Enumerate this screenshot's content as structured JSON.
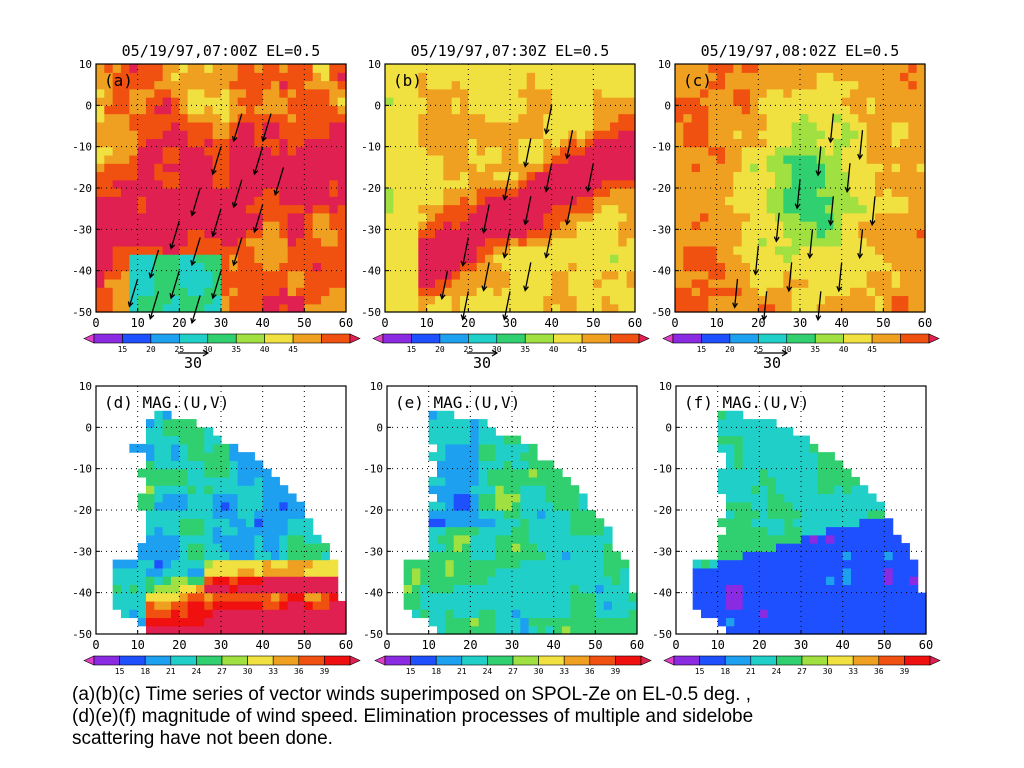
{
  "colors": {
    "ze_scale": [
      "#e040c8",
      "#8a2be2",
      "#1e50ff",
      "#1ea0f0",
      "#20d0c8",
      "#30d070",
      "#a0e040",
      "#f0e040",
      "#f0a020",
      "#f05010",
      "#e02050"
    ],
    "mag_scale": [
      "#e040c8",
      "#8a2be2",
      "#1e50ff",
      "#1ea0f0",
      "#20d0c8",
      "#30d070",
      "#a0e040",
      "#f0e040",
      "#f0a020",
      "#f05010",
      "#f01010",
      "#e02050"
    ],
    "arrow": "#000000",
    "axis": "#000000"
  },
  "chart_data": [
    {
      "id": "a",
      "type": "heatmap",
      "title": "05/19/97,07:00Z EL=0.5",
      "panel_label": "(a)",
      "field": "Ze",
      "overlay": "wind vectors",
      "xlim": [
        0,
        60
      ],
      "ylim": [
        -50,
        10
      ],
      "x_ticks": [
        "0",
        "10",
        "20",
        "30",
        "40",
        "50",
        "60"
      ],
      "y_ticks": [
        "10",
        "0",
        "-10",
        "-20",
        "-30",
        "-40",
        "-50"
      ],
      "grid": true,
      "colorbar_ticks": [
        "15",
        "20",
        "25",
        "30",
        "35",
        "40",
        "45"
      ],
      "vector_scale_label": "30",
      "dominant_value_range": [
        25,
        50
      ],
      "vectors": [
        {
          "x": 10,
          "y": -42,
          "u": -3,
          "v": -10
        },
        {
          "x": 15,
          "y": -35,
          "u": -3,
          "v": -10
        },
        {
          "x": 20,
          "y": -28,
          "u": -3,
          "v": -10
        },
        {
          "x": 25,
          "y": -20,
          "u": -3,
          "v": -10
        },
        {
          "x": 30,
          "y": -10,
          "u": -3,
          "v": -10
        },
        {
          "x": 35,
          "y": -2,
          "u": -3,
          "v": -10
        },
        {
          "x": 15,
          "y": -45,
          "u": -3,
          "v": -10
        },
        {
          "x": 20,
          "y": -40,
          "u": -3,
          "v": -10
        },
        {
          "x": 25,
          "y": -32,
          "u": -3,
          "v": -10
        },
        {
          "x": 30,
          "y": -25,
          "u": -3,
          "v": -10
        },
        {
          "x": 35,
          "y": -18,
          "u": -3,
          "v": -10
        },
        {
          "x": 40,
          "y": -10,
          "u": -3,
          "v": -10
        },
        {
          "x": 42,
          "y": -2,
          "u": -3,
          "v": -10
        },
        {
          "x": 25,
          "y": -46,
          "u": -3,
          "v": -10
        },
        {
          "x": 30,
          "y": -40,
          "u": -3,
          "v": -10
        },
        {
          "x": 35,
          "y": -32,
          "u": -3,
          "v": -10
        },
        {
          "x": 40,
          "y": -24,
          "u": -3,
          "v": -10
        },
        {
          "x": 45,
          "y": -15,
          "u": -3,
          "v": -10
        }
      ]
    },
    {
      "id": "b",
      "type": "heatmap",
      "title": "05/19/97,07:30Z EL=0.5",
      "panel_label": "(b)",
      "field": "Ze",
      "overlay": "wind vectors",
      "xlim": [
        0,
        60
      ],
      "ylim": [
        -50,
        10
      ],
      "x_ticks": [
        "0",
        "10",
        "20",
        "30",
        "40",
        "50",
        "60"
      ],
      "y_ticks": [
        "10",
        "0",
        "-10",
        "-20",
        "-30",
        "-40",
        "-50"
      ],
      "grid": true,
      "colorbar_ticks": [
        "15",
        "20",
        "25",
        "30",
        "35",
        "40",
        "45"
      ],
      "vector_scale_label": "30",
      "dominant_value_range": [
        25,
        45
      ],
      "vectors": [
        {
          "x": 15,
          "y": -40,
          "u": -2,
          "v": -10
        },
        {
          "x": 20,
          "y": -32,
          "u": -2,
          "v": -10
        },
        {
          "x": 25,
          "y": -24,
          "u": -2,
          "v": -10
        },
        {
          "x": 30,
          "y": -16,
          "u": -2,
          "v": -10
        },
        {
          "x": 35,
          "y": -8,
          "u": -2,
          "v": -10
        },
        {
          "x": 40,
          "y": 0,
          "u": -2,
          "v": -10
        },
        {
          "x": 20,
          "y": -45,
          "u": -2,
          "v": -10
        },
        {
          "x": 25,
          "y": -38,
          "u": -2,
          "v": -10
        },
        {
          "x": 30,
          "y": -30,
          "u": -2,
          "v": -10
        },
        {
          "x": 35,
          "y": -22,
          "u": -2,
          "v": -10
        },
        {
          "x": 40,
          "y": -14,
          "u": -2,
          "v": -10
        },
        {
          "x": 45,
          "y": -6,
          "u": -2,
          "v": -10
        },
        {
          "x": 30,
          "y": -45,
          "u": -2,
          "v": -10
        },
        {
          "x": 35,
          "y": -38,
          "u": -2,
          "v": -10
        },
        {
          "x": 40,
          "y": -30,
          "u": -2,
          "v": -10
        },
        {
          "x": 45,
          "y": -22,
          "u": -2,
          "v": -10
        },
        {
          "x": 50,
          "y": -14,
          "u": -2,
          "v": -10
        }
      ]
    },
    {
      "id": "c",
      "type": "heatmap",
      "title": "05/19/97,08:02Z EL=0.5",
      "panel_label": "(c)",
      "field": "Ze",
      "overlay": "wind vectors",
      "xlim": [
        0,
        60
      ],
      "ylim": [
        -50,
        10
      ],
      "x_ticks": [
        "0",
        "10",
        "20",
        "30",
        "40",
        "50",
        "60"
      ],
      "y_ticks": [
        "10",
        "0",
        "-10",
        "-20",
        "-30",
        "-40",
        "-50"
      ],
      "grid": true,
      "colorbar_ticks": [
        "15",
        "20",
        "25",
        "30",
        "35",
        "40",
        "45"
      ],
      "vector_scale_label": "30",
      "dominant_value_range": [
        20,
        40
      ],
      "vectors": [
        {
          "x": 15,
          "y": -42,
          "u": -1,
          "v": -10
        },
        {
          "x": 20,
          "y": -34,
          "u": -1,
          "v": -10
        },
        {
          "x": 25,
          "y": -26,
          "u": -1,
          "v": -10
        },
        {
          "x": 30,
          "y": -18,
          "u": -1,
          "v": -10
        },
        {
          "x": 35,
          "y": -10,
          "u": -1,
          "v": -10
        },
        {
          "x": 38,
          "y": -2,
          "u": -1,
          "v": -10
        },
        {
          "x": 22,
          "y": -45,
          "u": -1,
          "v": -10
        },
        {
          "x": 28,
          "y": -38,
          "u": -1,
          "v": -10
        },
        {
          "x": 33,
          "y": -30,
          "u": -1,
          "v": -10
        },
        {
          "x": 38,
          "y": -22,
          "u": -1,
          "v": -10
        },
        {
          "x": 42,
          "y": -14,
          "u": -1,
          "v": -10
        },
        {
          "x": 45,
          "y": -6,
          "u": -1,
          "v": -10
        },
        {
          "x": 35,
          "y": -45,
          "u": -1,
          "v": -10
        },
        {
          "x": 40,
          "y": -38,
          "u": -1,
          "v": -10
        },
        {
          "x": 45,
          "y": -30,
          "u": -1,
          "v": -10
        },
        {
          "x": 48,
          "y": -22,
          "u": -1,
          "v": -10
        }
      ]
    },
    {
      "id": "d",
      "type": "heatmap",
      "title": "",
      "panel_label": "(d)",
      "field_label": "MAG.(U,V)",
      "xlim": [
        0,
        60
      ],
      "ylim": [
        -50,
        10
      ],
      "x_ticks": [
        "0",
        "10",
        "20",
        "30",
        "40",
        "50",
        "60"
      ],
      "y_ticks": [
        "10",
        "0",
        "-10",
        "-20",
        "-30",
        "-40",
        "-50"
      ],
      "grid": true,
      "colorbar_ticks": [
        "15",
        "18",
        "21",
        "24",
        "27",
        "30",
        "33",
        "36",
        "39"
      ],
      "dominant_value_range": [
        15,
        39
      ]
    },
    {
      "id": "e",
      "type": "heatmap",
      "title": "",
      "panel_label": "(e)",
      "field_label": "MAG.(U,V)",
      "xlim": [
        0,
        60
      ],
      "ylim": [
        -50,
        10
      ],
      "x_ticks": [
        "0",
        "10",
        "20",
        "30",
        "40",
        "50",
        "60"
      ],
      "y_ticks": [
        "10",
        "0",
        "-10",
        "-20",
        "-30",
        "-40",
        "-50"
      ],
      "grid": true,
      "colorbar_ticks": [
        "15",
        "18",
        "21",
        "24",
        "27",
        "30",
        "33",
        "36",
        "39"
      ],
      "dominant_value_range": [
        15,
        30
      ]
    },
    {
      "id": "f",
      "type": "heatmap",
      "title": "",
      "panel_label": "(f)",
      "field_label": "MAG.(U,V)",
      "xlim": [
        0,
        60
      ],
      "ylim": [
        -50,
        10
      ],
      "x_ticks": [
        "0",
        "10",
        "20",
        "30",
        "40",
        "50",
        "60"
      ],
      "y_ticks": [
        "10",
        "0",
        "-10",
        "-20",
        "-30",
        "-40",
        "-50"
      ],
      "grid": true,
      "colorbar_ticks": [
        "15",
        "18",
        "21",
        "24",
        "27",
        "30",
        "33",
        "36",
        "39"
      ],
      "dominant_value_range": [
        15,
        27
      ]
    }
  ],
  "caption": {
    "line1": "(a)(b)(c) Time series of vector winds superimposed on SPOL-Ze on EL-0.5 deg. ,",
    "line2": "(d)(e)(f) magnitude of wind speed. Elimination processes  of multiple and sidelobe",
    "line3": "scattering have not been done."
  }
}
